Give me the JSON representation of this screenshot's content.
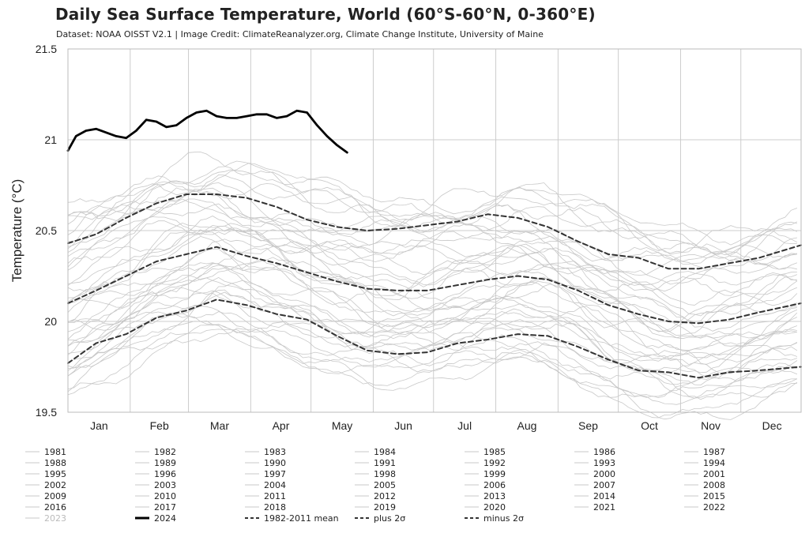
{
  "header": {
    "title": "Daily Sea Surface Temperature, World (60°S-60°N, 0-360°E)",
    "subtitle": "Dataset: NOAA OISST V2.1 | Image Credit: ClimateReanalyzer.org, Climate Change Institute, University of Maine"
  },
  "chart_data": {
    "type": "line",
    "ylabel": "Temperature (°C)",
    "xlabel": "",
    "ylim": [
      19.5,
      21.5
    ],
    "xlim": [
      1,
      366
    ],
    "y_ticks": [
      19.5,
      20,
      20.5,
      21,
      21.5
    ],
    "y_tick_labels": [
      "19.5",
      "20",
      "20.5",
      "21",
      "21.5"
    ],
    "months": [
      "Jan",
      "Feb",
      "Mar",
      "Apr",
      "May",
      "Jun",
      "Jul",
      "Aug",
      "Sep",
      "Oct",
      "Nov",
      "Dec"
    ],
    "grid": true,
    "legend_position": "bottom",
    "colors": {
      "background_years": "#c8c8c8",
      "year_2023": "#c8c8c8",
      "year_2024": "#000000",
      "climatology": "#333333",
      "grid": "#cccccc"
    },
    "series": [
      {
        "name": "2024",
        "x": [
          1,
          5,
          10,
          15,
          20,
          25,
          30,
          35,
          40,
          45,
          50,
          55,
          60,
          65,
          70,
          75,
          80,
          85,
          90,
          95,
          100,
          105,
          110,
          115,
          120,
          125,
          130,
          135,
          140
        ],
        "values": [
          20.94,
          21.02,
          21.05,
          21.06,
          21.04,
          21.02,
          21.01,
          21.05,
          21.11,
          21.1,
          21.07,
          21.08,
          21.12,
          21.15,
          21.16,
          21.13,
          21.12,
          21.12,
          21.13,
          21.14,
          21.14,
          21.12,
          21.13,
          21.16,
          21.15,
          21.08,
          21.02,
          20.97,
          20.93
        ]
      },
      {
        "name": "1982-2011 mean",
        "x": [
          1,
          15,
          30,
          45,
          60,
          75,
          90,
          105,
          120,
          135,
          150,
          165,
          180,
          195,
          210,
          225,
          240,
          255,
          270,
          285,
          300,
          315,
          330,
          345,
          366
        ],
        "values": [
          20.1,
          20.17,
          20.25,
          20.33,
          20.37,
          20.41,
          20.36,
          20.32,
          20.27,
          20.22,
          20.18,
          20.17,
          20.17,
          20.2,
          20.23,
          20.25,
          20.23,
          20.17,
          20.09,
          20.04,
          20.0,
          19.99,
          20.01,
          20.05,
          20.1
        ]
      },
      {
        "name": "plus 2σ",
        "x": [
          1,
          15,
          30,
          45,
          60,
          75,
          90,
          105,
          120,
          135,
          150,
          165,
          180,
          195,
          210,
          225,
          240,
          255,
          270,
          285,
          300,
          315,
          330,
          345,
          366
        ],
        "values": [
          20.43,
          20.48,
          20.57,
          20.65,
          20.7,
          20.7,
          20.68,
          20.63,
          20.56,
          20.52,
          20.5,
          20.51,
          20.53,
          20.55,
          20.59,
          20.57,
          20.52,
          20.44,
          20.37,
          20.35,
          20.29,
          20.29,
          20.32,
          20.35,
          20.42
        ]
      },
      {
        "name": "minus 2σ",
        "x": [
          1,
          15,
          30,
          45,
          60,
          75,
          90,
          105,
          120,
          135,
          150,
          165,
          180,
          195,
          210,
          225,
          240,
          255,
          270,
          285,
          300,
          315,
          330,
          345,
          366
        ],
        "values": [
          19.77,
          19.88,
          19.93,
          20.02,
          20.06,
          20.12,
          20.09,
          20.04,
          20.01,
          19.92,
          19.84,
          19.82,
          19.83,
          19.88,
          19.9,
          19.93,
          19.92,
          19.86,
          19.79,
          19.73,
          19.72,
          19.69,
          19.72,
          19.73,
          19.75
        ]
      }
    ],
    "background_series_note": "",
    "legend": [
      "1981",
      "1982",
      "1983",
      "1984",
      "1985",
      "1986",
      "1987",
      "1988",
      "1989",
      "1990",
      "1991",
      "1992",
      "1993",
      "1994",
      "1995",
      "1996",
      "1997",
      "1998",
      "1999",
      "2000",
      "2001",
      "2002",
      "2003",
      "2004",
      "2005",
      "2006",
      "2007",
      "2008",
      "2009",
      "2010",
      "2011",
      "2012",
      "2013",
      "2014",
      "2015",
      "2016",
      "2017",
      "2018",
      "2019",
      "2020",
      "2021",
      "2022",
      "2023",
      "2024",
      "1982-2011 mean",
      "plus 2σ",
      "minus 2σ"
    ]
  }
}
